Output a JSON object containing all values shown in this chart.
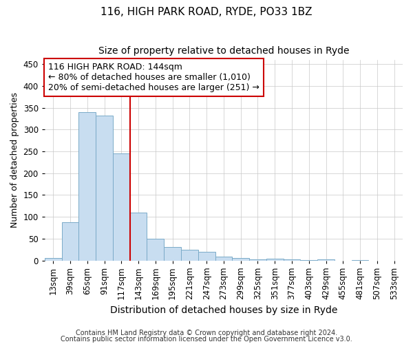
{
  "title1": "116, HIGH PARK ROAD, RYDE, PO33 1BZ",
  "title2": "Size of property relative to detached houses in Ryde",
  "xlabel": "Distribution of detached houses by size in Ryde",
  "ylabel": "Number of detached properties",
  "categories": [
    "13sqm",
    "39sqm",
    "65sqm",
    "91sqm",
    "117sqm",
    "143sqm",
    "169sqm",
    "195sqm",
    "221sqm",
    "247sqm",
    "273sqm",
    "299sqm",
    "325sqm",
    "351sqm",
    "377sqm",
    "403sqm",
    "429sqm",
    "455sqm",
    "481sqm",
    "507sqm",
    "533sqm"
  ],
  "values": [
    5,
    88,
    340,
    332,
    245,
    110,
    50,
    31,
    24,
    19,
    9,
    5,
    3,
    4,
    2,
    1,
    2,
    0,
    1,
    0,
    0
  ],
  "bar_color": "#c8ddf0",
  "bar_edge_color": "#7aaac8",
  "highlight_line_color": "#cc0000",
  "annotation_line1": "116 HIGH PARK ROAD: 144sqm",
  "annotation_line2": "← 80% of detached houses are smaller (1,010)",
  "annotation_line3": "20% of semi-detached houses are larger (251) →",
  "annotation_box_color": "#ffffff",
  "annotation_box_edge_color": "#cc0000",
  "ylim": [
    0,
    460
  ],
  "yticks": [
    0,
    50,
    100,
    150,
    200,
    250,
    300,
    350,
    400,
    450
  ],
  "footer1": "Contains HM Land Registry data © Crown copyright and database right 2024.",
  "footer2": "Contains public sector information licensed under the Open Government Licence v3.0.",
  "background_color": "#ffffff",
  "grid_color": "#c8c8c8",
  "title1_fontsize": 11,
  "title2_fontsize": 10,
  "xlabel_fontsize": 10,
  "ylabel_fontsize": 9,
  "tick_fontsize": 8.5,
  "annotation_fontsize": 9,
  "footer_fontsize": 7
}
